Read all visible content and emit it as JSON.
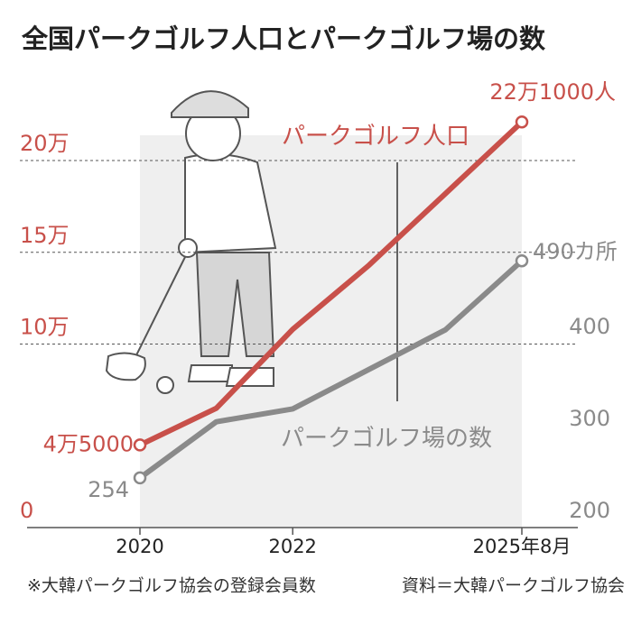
{
  "chart_data": {
    "type": "line",
    "title": "全国パークゴルフ人口とパークゴルフ場の数",
    "categories": [
      "2020",
      null,
      "2022",
      null,
      null,
      "2025年8月"
    ],
    "series": [
      {
        "name": "パークゴルフ人口",
        "color": "#c8504a",
        "values": [
          45000,
          65000,
          108000,
          143000,
          182000,
          221000
        ],
        "value_labels": [
          "4万5000",
          null,
          null,
          null,
          null,
          "22万1000人"
        ]
      },
      {
        "name": "パークゴルフ場の数",
        "color": "#8a8a8a",
        "axis": "y2",
        "values": [
          254,
          315,
          329,
          372,
          415,
          490
        ],
        "value_labels": [
          "254",
          null,
          null,
          null,
          null,
          "490カ所"
        ]
      }
    ],
    "ylim": [
      0,
      200000
    ],
    "yticks": [
      0,
      {
        "value": 100000,
        "label": "10万"
      },
      {
        "value": 150000,
        "label": "15万"
      },
      {
        "value": 200000,
        "label": "20万"
      }
    ],
    "y2lim": [
      200,
      400
    ],
    "y2ticks": [
      200,
      300,
      400
    ],
    "grid": true,
    "note": "※大韓パークゴルフ協会の登録会員数",
    "source": "資料＝大韓パークゴルフ協会"
  }
}
